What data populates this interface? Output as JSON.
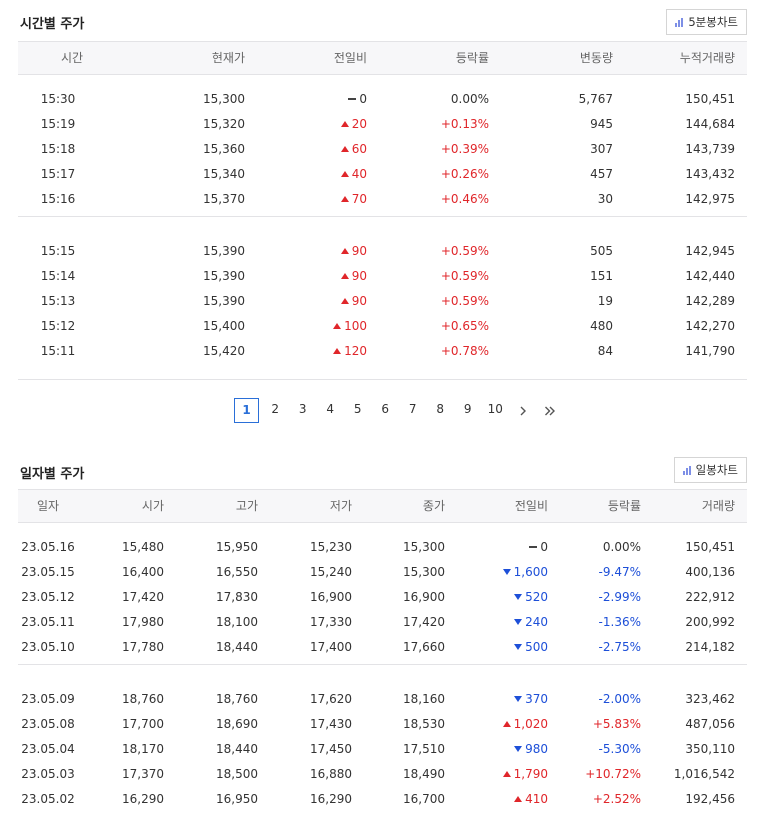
{
  "intraday": {
    "title": "시간별 주가",
    "chart_button": "5분봉차트",
    "headers": [
      "시간",
      "현재가",
      "전일비",
      "등락률",
      "변동량",
      "누적거래량"
    ],
    "groups": [
      [
        {
          "time": "15:30",
          "price": "15,300",
          "dir": "same",
          "change": "0",
          "rate": "0.00%",
          "vol": "5,767",
          "cum": "150,451"
        },
        {
          "time": "15:19",
          "price": "15,320",
          "dir": "up",
          "change": "20",
          "rate": "+0.13%",
          "vol": "945",
          "cum": "144,684"
        },
        {
          "time": "15:18",
          "price": "15,360",
          "dir": "up",
          "change": "60",
          "rate": "+0.39%",
          "vol": "307",
          "cum": "143,739"
        },
        {
          "time": "15:17",
          "price": "15,340",
          "dir": "up",
          "change": "40",
          "rate": "+0.26%",
          "vol": "457",
          "cum": "143,432"
        },
        {
          "time": "15:16",
          "price": "15,370",
          "dir": "up",
          "change": "70",
          "rate": "+0.46%",
          "vol": "30",
          "cum": "142,975"
        }
      ],
      [
        {
          "time": "15:15",
          "price": "15,390",
          "dir": "up",
          "change": "90",
          "rate": "+0.59%",
          "vol": "505",
          "cum": "142,945"
        },
        {
          "time": "15:14",
          "price": "15,390",
          "dir": "up",
          "change": "90",
          "rate": "+0.59%",
          "vol": "151",
          "cum": "142,440"
        },
        {
          "time": "15:13",
          "price": "15,390",
          "dir": "up",
          "change": "90",
          "rate": "+0.59%",
          "vol": "19",
          "cum": "142,289"
        },
        {
          "time": "15:12",
          "price": "15,400",
          "dir": "up",
          "change": "100",
          "rate": "+0.65%",
          "vol": "480",
          "cum": "142,270"
        },
        {
          "time": "15:11",
          "price": "15,420",
          "dir": "up",
          "change": "120",
          "rate": "+0.78%",
          "vol": "84",
          "cum": "141,790"
        }
      ]
    ]
  },
  "pagination": {
    "current": "1",
    "pages": [
      "1",
      "2",
      "3",
      "4",
      "5",
      "6",
      "7",
      "8",
      "9",
      "10"
    ],
    "next_icon": "chevron-right-icon",
    "last_icon": "double-chevron-right-icon"
  },
  "daily": {
    "title": "일자별 주가",
    "chart_button": "일봉차트",
    "headers": [
      "일자",
      "시가",
      "고가",
      "저가",
      "종가",
      "전일비",
      "등락률",
      "거래량"
    ],
    "groups": [
      [
        {
          "date": "23.05.16",
          "open": "15,480",
          "high": "15,950",
          "low": "15,230",
          "close": "15,300",
          "dir": "same",
          "change": "0",
          "rate": "0.00%",
          "vol": "150,451"
        },
        {
          "date": "23.05.15",
          "open": "16,400",
          "high": "16,550",
          "low": "15,240",
          "close": "15,300",
          "dir": "down",
          "change": "1,600",
          "rate": "-9.47%",
          "vol": "400,136"
        },
        {
          "date": "23.05.12",
          "open": "17,420",
          "high": "17,830",
          "low": "16,900",
          "close": "16,900",
          "dir": "down",
          "change": "520",
          "rate": "-2.99%",
          "vol": "222,912"
        },
        {
          "date": "23.05.11",
          "open": "17,980",
          "high": "18,100",
          "low": "17,330",
          "close": "17,420",
          "dir": "down",
          "change": "240",
          "rate": "-1.36%",
          "vol": "200,992"
        },
        {
          "date": "23.05.10",
          "open": "17,780",
          "high": "18,440",
          "low": "17,400",
          "close": "17,660",
          "dir": "down",
          "change": "500",
          "rate": "-2.75%",
          "vol": "214,182"
        }
      ],
      [
        {
          "date": "23.05.09",
          "open": "18,760",
          "high": "18,760",
          "low": "17,620",
          "close": "18,160",
          "dir": "down",
          "change": "370",
          "rate": "-2.00%",
          "vol": "323,462"
        },
        {
          "date": "23.05.08",
          "open": "17,700",
          "high": "18,690",
          "low": "17,430",
          "close": "18,530",
          "dir": "up",
          "change": "1,020",
          "rate": "+5.83%",
          "vol": "487,056"
        },
        {
          "date": "23.05.04",
          "open": "18,170",
          "high": "18,440",
          "low": "17,450",
          "close": "17,510",
          "dir": "down",
          "change": "980",
          "rate": "-5.30%",
          "vol": "350,110"
        },
        {
          "date": "23.05.03",
          "open": "17,370",
          "high": "18,500",
          "low": "16,880",
          "close": "18,490",
          "dir": "up",
          "change": "1,790",
          "rate": "+10.72%",
          "vol": "1,016,542"
        },
        {
          "date": "23.05.02",
          "open": "16,290",
          "high": "16,950",
          "low": "16,290",
          "close": "16,700",
          "dir": "up",
          "change": "410",
          "rate": "+2.52%",
          "vol": "192,456"
        }
      ]
    ]
  },
  "colors": {
    "up": "#e0262a",
    "down": "#1d4fd8",
    "active_page": "#2a6fd8"
  }
}
